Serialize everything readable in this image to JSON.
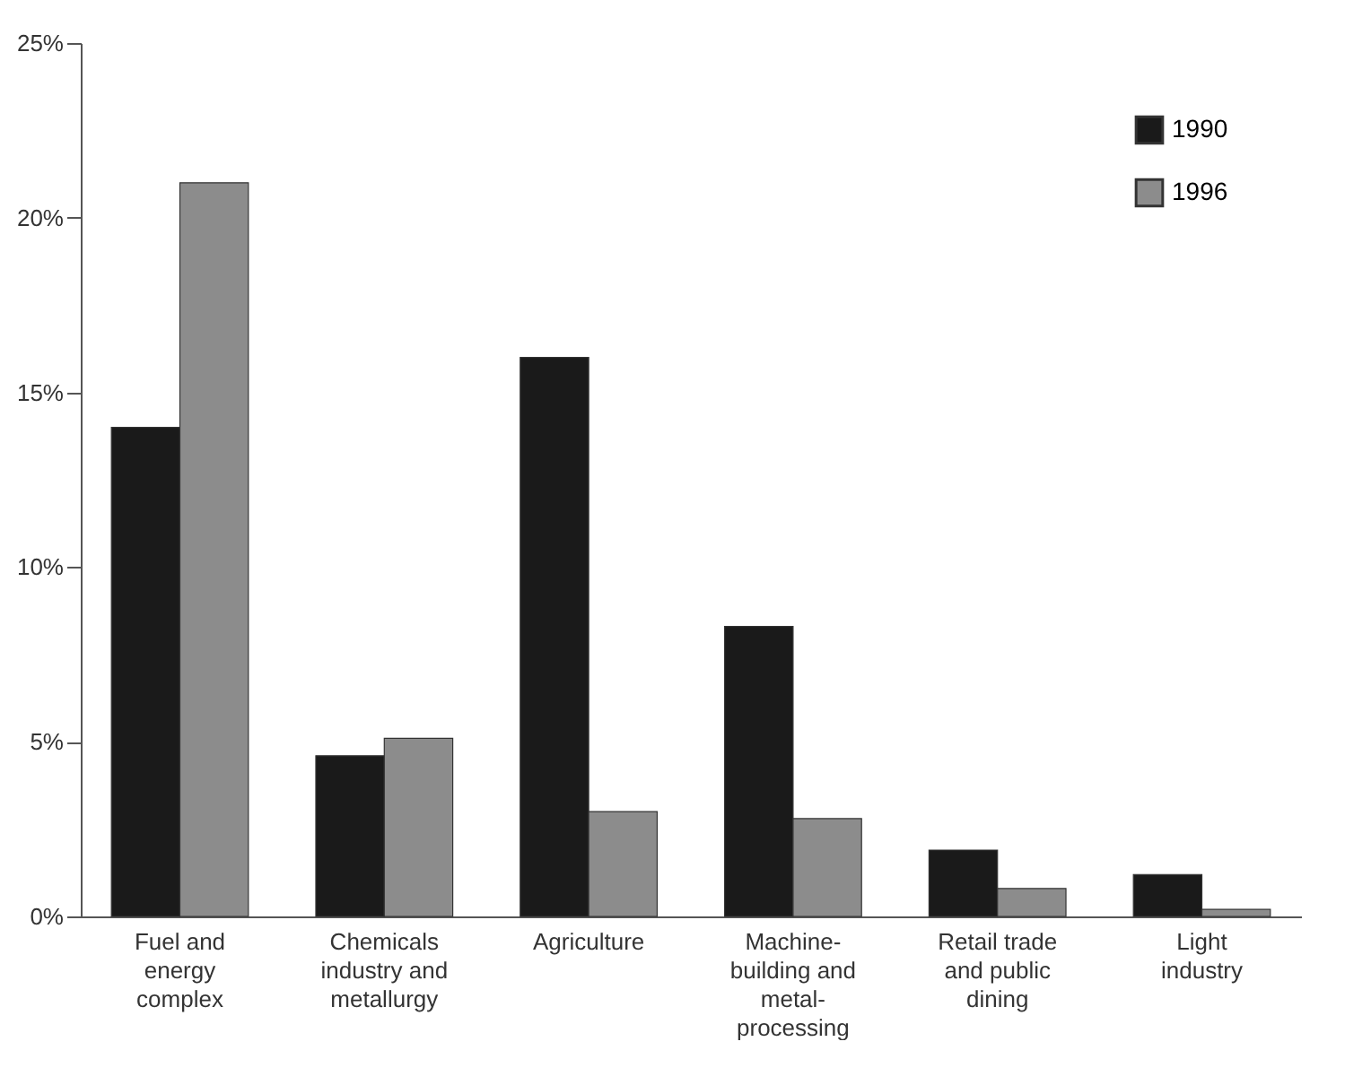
{
  "chart_data": {
    "type": "bar",
    "categories": [
      "Fuel and energy complex",
      "Chemicals industry and metallurgy",
      "Agriculture",
      "Machine-building and metal-processing",
      "Retail trade and public dining",
      "Light industry"
    ],
    "series": [
      {
        "name": "1990",
        "color": "#1a1a1a",
        "values": [
          14,
          4.6,
          16,
          8.3,
          1.9,
          1.2
        ]
      },
      {
        "name": "1996",
        "color": "#8c8c8c",
        "values": [
          21,
          5.1,
          3.0,
          2.8,
          0.8,
          0.2
        ]
      }
    ],
    "ylim": [
      0,
      25
    ],
    "yticks": [
      {
        "value": 0,
        "label": "0%"
      },
      {
        "value": 5,
        "label": "5%"
      },
      {
        "value": 10,
        "label": "10%"
      },
      {
        "value": 15,
        "label": "15%"
      },
      {
        "value": 20,
        "label": "20%"
      },
      {
        "value": 25,
        "label": "25%"
      }
    ],
    "grid": false,
    "legend": "top right"
  }
}
